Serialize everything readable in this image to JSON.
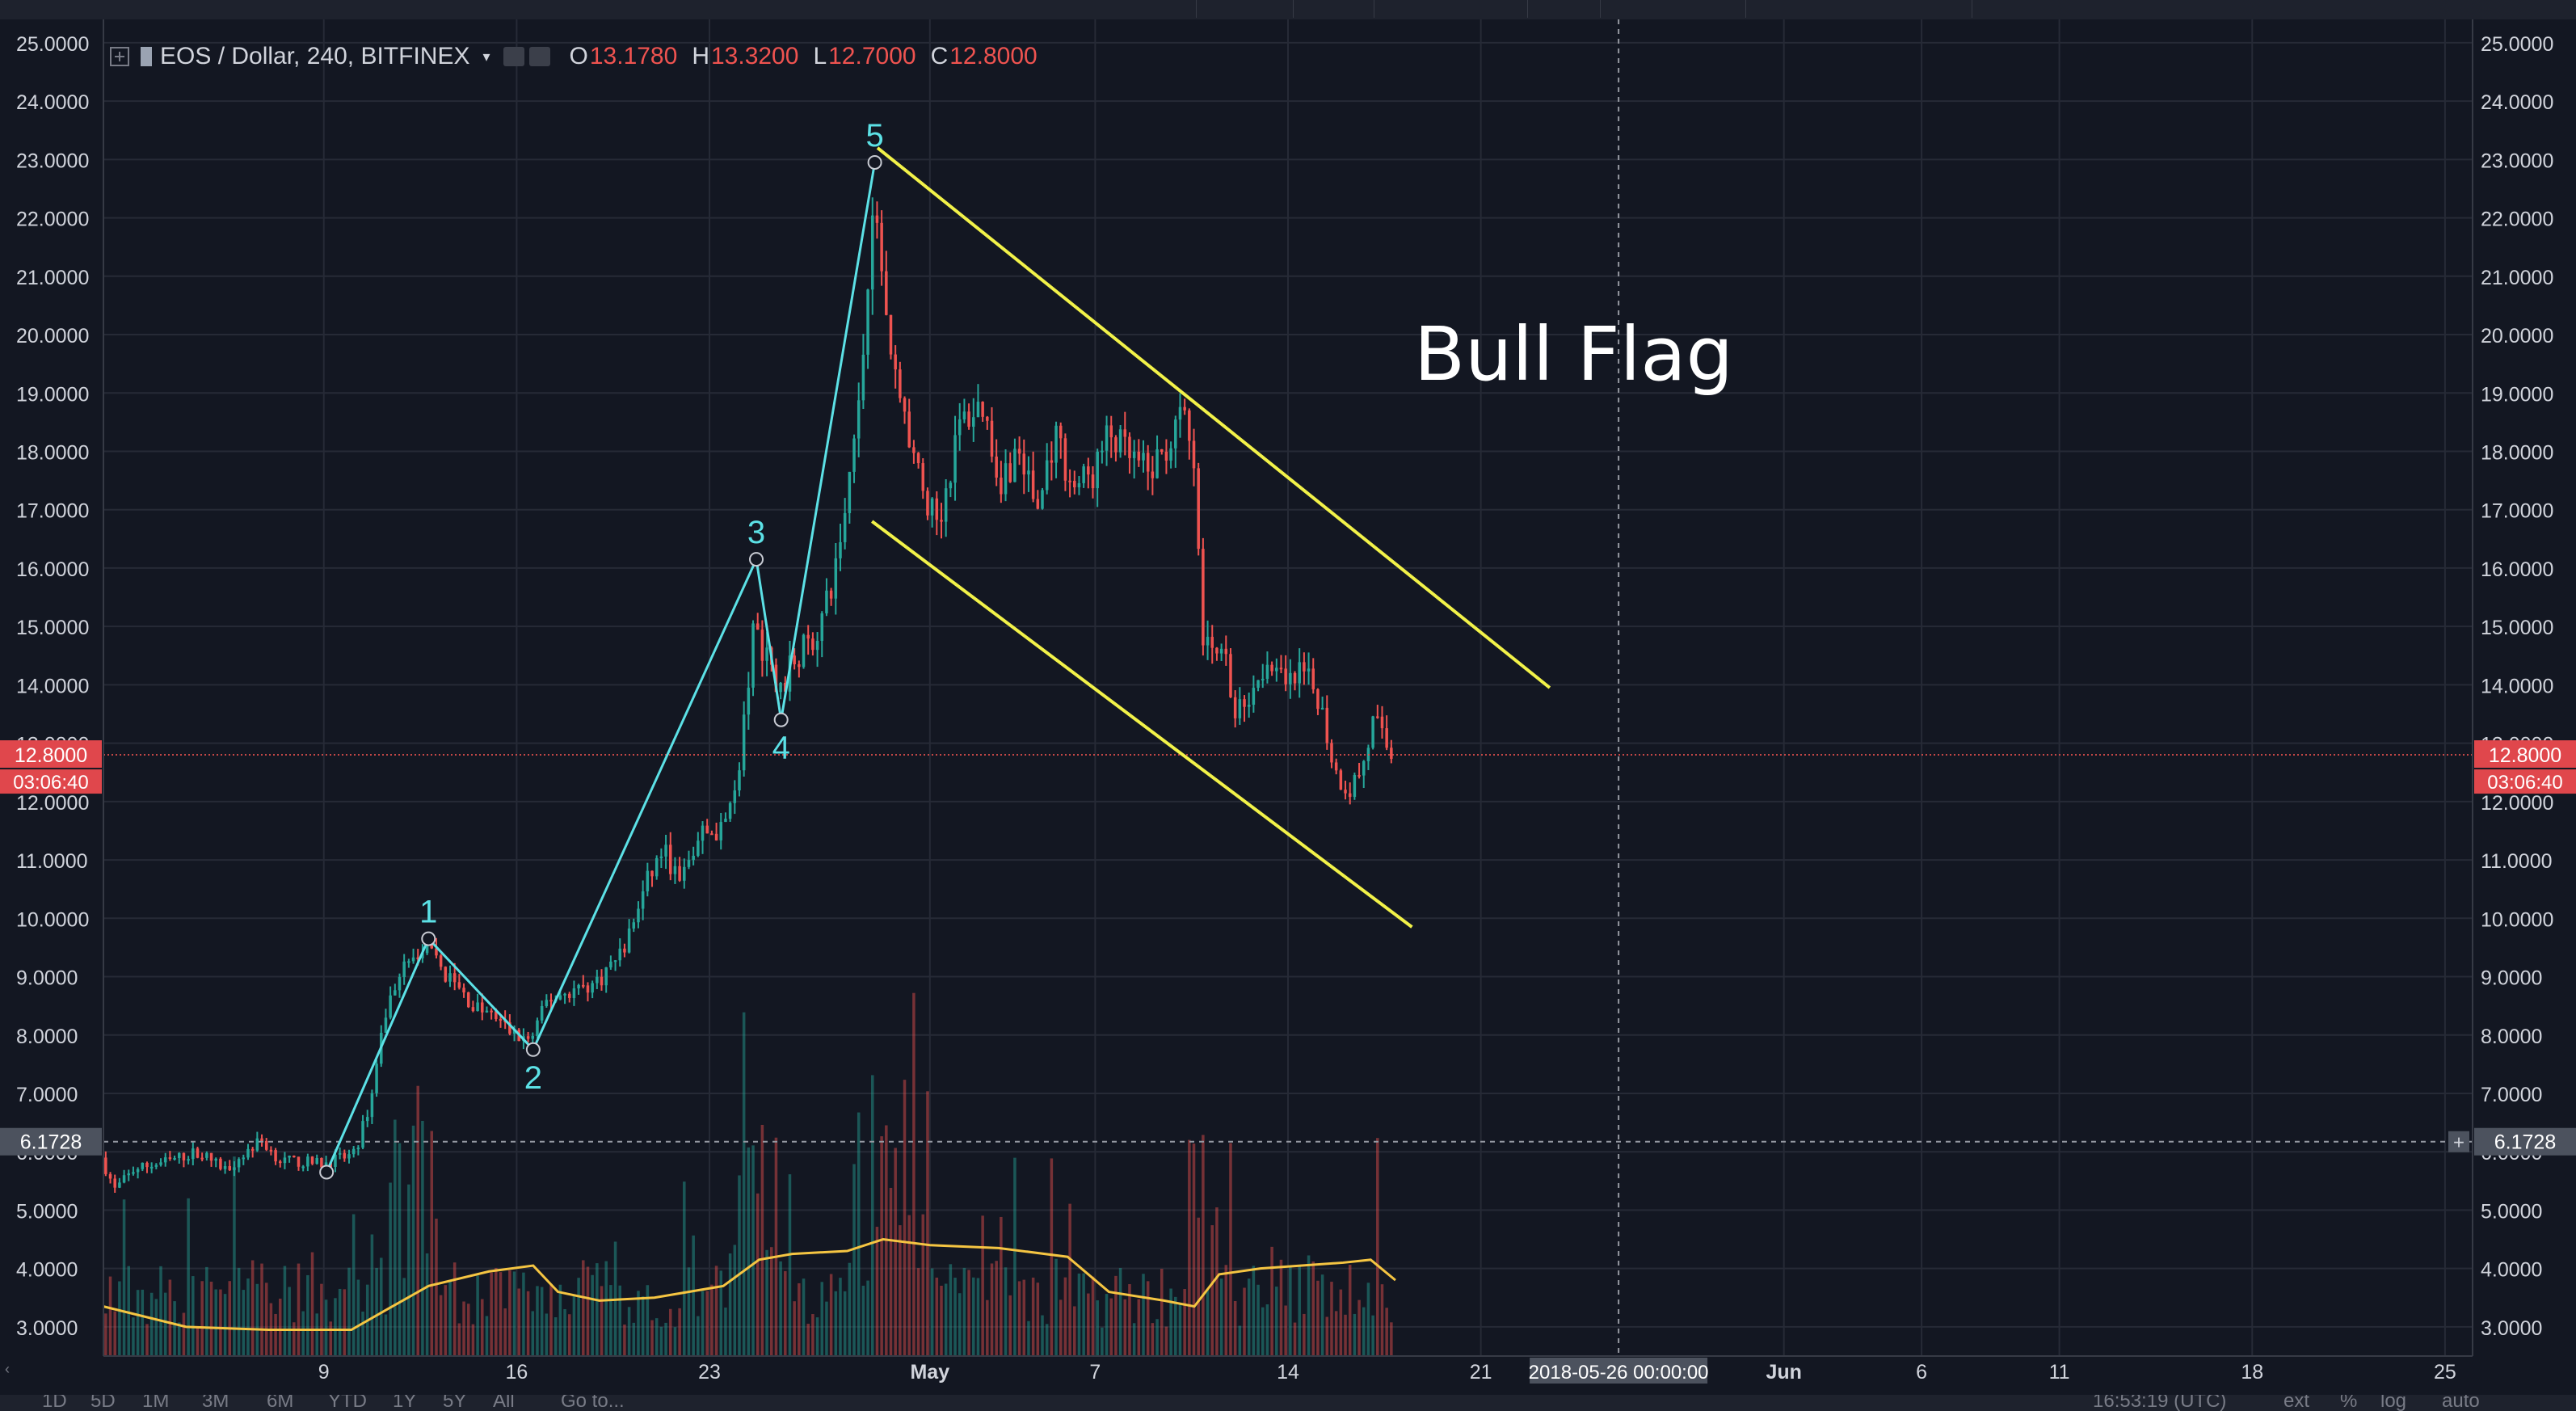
{
  "chart_data": {
    "type": "candlestick",
    "symbol": "EOS / Dollar, 240, BITFINEX",
    "ohlc": {
      "O": "13.1780",
      "H": "13.3200",
      "L": "12.7000",
      "C": "12.8000"
    },
    "last_price_label": "12.8000",
    "countdown_label": "03:06:40",
    "crosshair_price_label": "6.1728",
    "crosshair_time_label": "2018-05-26 00:00:00",
    "annotation": "Bull Flag",
    "yticks": [
      "25.0000",
      "24.0000",
      "23.0000",
      "22.0000",
      "21.0000",
      "20.0000",
      "19.0000",
      "18.0000",
      "17.0000",
      "16.0000",
      "15.0000",
      "14.0000",
      "13.0000",
      "12.0000",
      "11.0000",
      "10.0000",
      "9.0000",
      "8.0000",
      "7.0000",
      "6.0000",
      "5.0000",
      "4.0000",
      "3.0000"
    ],
    "ylim": [
      2.5,
      25.4
    ],
    "xticks": [
      {
        "label": "9",
        "day": 9
      },
      {
        "label": "16",
        "day": 16
      },
      {
        "label": "23",
        "day": 23
      },
      {
        "label": "May",
        "day": 31
      },
      {
        "label": "7",
        "day": 37
      },
      {
        "label": "14",
        "day": 44
      },
      {
        "label": "21",
        "day": 51
      },
      {
        "label": "Jun",
        "day": 62
      },
      {
        "label": "6",
        "day": 67
      },
      {
        "label": "11",
        "day": 72
      },
      {
        "label": "18",
        "day": 79
      },
      {
        "label": "25",
        "day": 86
      }
    ],
    "xlim": [
      1,
      87
    ],
    "crosshair_day": 56,
    "wave_labels": [
      {
        "label": "1",
        "day": 12.8,
        "price": 9.65,
        "above": true
      },
      {
        "label": "2",
        "day": 16.6,
        "price": 7.75,
        "above": false
      },
      {
        "label": "3",
        "day": 24.7,
        "price": 16.15,
        "above": true
      },
      {
        "label": "4",
        "day": 25.6,
        "price": 13.4,
        "above": false
      },
      {
        "label": "5",
        "day": 29.0,
        "price": 22.95,
        "above": true
      }
    ],
    "wave_start": {
      "day": 9.1,
      "price": 5.65
    },
    "flag_upper": [
      {
        "day": 29.1,
        "price": 23.2
      },
      {
        "day": 53.5,
        "price": 13.95
      }
    ],
    "flag_lower": [
      {
        "day": 28.9,
        "price": 16.8
      },
      {
        "day": 48.5,
        "price": 9.85
      }
    ],
    "price_path": [
      [
        1.0,
        5.9
      ],
      [
        1.5,
        5.35
      ],
      [
        2.2,
        5.7
      ],
      [
        3.5,
        5.85
      ],
      [
        4.5,
        6.0
      ],
      [
        5.5,
        5.7
      ],
      [
        6.8,
        6.2
      ],
      [
        7.5,
        5.85
      ],
      [
        9.0,
        5.8
      ],
      [
        10.2,
        5.95
      ],
      [
        10.8,
        6.9
      ],
      [
        11.3,
        8.3
      ],
      [
        11.8,
        9.1
      ],
      [
        12.8,
        9.45
      ],
      [
        13.6,
        9.0
      ],
      [
        14.5,
        8.5
      ],
      [
        15.3,
        8.3
      ],
      [
        16.0,
        8.0
      ],
      [
        16.6,
        7.9
      ],
      [
        17.2,
        8.6
      ],
      [
        18.0,
        8.75
      ],
      [
        19.0,
        8.9
      ],
      [
        20.0,
        9.5
      ],
      [
        20.8,
        10.6
      ],
      [
        21.4,
        11.2
      ],
      [
        22.0,
        10.6
      ],
      [
        22.8,
        11.45
      ],
      [
        23.6,
        11.5
      ],
      [
        24.2,
        12.7
      ],
      [
        24.7,
        15.0
      ],
      [
        25.3,
        14.3
      ],
      [
        25.6,
        13.8
      ],
      [
        26.2,
        14.5
      ],
      [
        26.9,
        14.8
      ],
      [
        27.5,
        15.6
      ],
      [
        28.0,
        17.0
      ],
      [
        28.6,
        19.2
      ],
      [
        29.0,
        22.4
      ],
      [
        29.4,
        20.8
      ],
      [
        29.8,
        19.4
      ],
      [
        30.2,
        18.5
      ],
      [
        30.8,
        17.3
      ],
      [
        31.4,
        16.8
      ],
      [
        32.2,
        18.5
      ],
      [
        33.0,
        18.8
      ],
      [
        33.6,
        17.5
      ],
      [
        34.3,
        18.0
      ],
      [
        35.0,
        17.0
      ],
      [
        35.6,
        18.3
      ],
      [
        36.3,
        17.4
      ],
      [
        37.0,
        17.6
      ],
      [
        37.6,
        18.3
      ],
      [
        38.3,
        17.9
      ],
      [
        39.0,
        17.6
      ],
      [
        39.6,
        18.0
      ],
      [
        40.3,
        18.6
      ],
      [
        40.7,
        17.5
      ],
      [
        41.0,
        14.6
      ],
      [
        41.6,
        14.8
      ],
      [
        42.2,
        13.5
      ],
      [
        42.8,
        14.0
      ],
      [
        43.4,
        14.5
      ],
      [
        44.0,
        13.9
      ],
      [
        44.6,
        14.2
      ],
      [
        45.2,
        13.8
      ],
      [
        45.8,
        12.5
      ],
      [
        46.3,
        12.2
      ],
      [
        46.8,
        12.6
      ],
      [
        47.2,
        13.4
      ],
      [
        47.8,
        12.8
      ]
    ],
    "ma_path": [
      [
        1.0,
        3.35
      ],
      [
        4.0,
        3.0
      ],
      [
        7.0,
        2.95
      ],
      [
        10.0,
        2.95
      ],
      [
        11.3,
        3.3
      ],
      [
        12.8,
        3.7
      ],
      [
        15.0,
        3.95
      ],
      [
        16.6,
        4.05
      ],
      [
        17.5,
        3.6
      ],
      [
        19.0,
        3.45
      ],
      [
        21.0,
        3.5
      ],
      [
        23.5,
        3.7
      ],
      [
        24.8,
        4.15
      ],
      [
        26.0,
        4.25
      ],
      [
        28.0,
        4.3
      ],
      [
        29.3,
        4.5
      ],
      [
        31.0,
        4.4
      ],
      [
        33.5,
        4.35
      ],
      [
        36.0,
        4.2
      ],
      [
        37.5,
        3.6
      ],
      [
        39.5,
        3.45
      ],
      [
        40.6,
        3.35
      ],
      [
        41.5,
        3.9
      ],
      [
        43.0,
        4.0
      ],
      [
        46.0,
        4.1
      ],
      [
        47.0,
        4.15
      ],
      [
        47.9,
        3.8
      ]
    ]
  },
  "bottom_toolbar": {
    "ranges": [
      "1D",
      "5D",
      "1M",
      "3M",
      "6M",
      "YTD",
      "1Y",
      "5Y",
      "All"
    ],
    "goto": "Go to...",
    "clock": "16:53:19 (UTC)",
    "ext": "ext",
    "pct": "%",
    "log": "log",
    "auto": "auto"
  },
  "colors": {
    "background": "#131722",
    "grid": "#262a36",
    "up": "#26a69a",
    "down": "#ef5350",
    "wave": "#5ce1e6",
    "flag": "#f2f249",
    "ma": "#f5c542",
    "text": "#d1d4dc"
  }
}
